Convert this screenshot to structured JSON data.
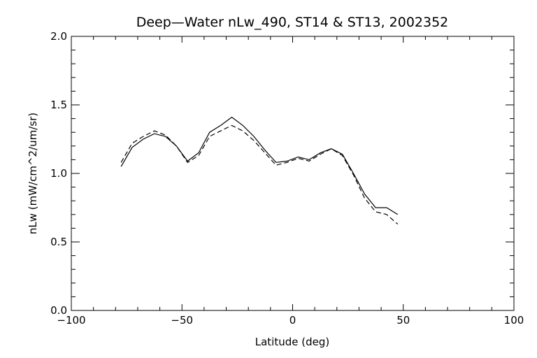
{
  "chart_data": {
    "type": "line",
    "title": "Deep—Water nLw_490, ST14 & ST13, 2002352",
    "xlabel": "Latitude (deg)",
    "ylabel": "nLw (mW/cm^2/um/sr)",
    "xlim": [
      -100,
      100
    ],
    "ylim": [
      0.0,
      2.0
    ],
    "xticks": [
      -100,
      -50,
      0,
      50,
      100
    ],
    "xtick_labels": [
      "−100",
      "−50",
      "0",
      "50",
      "100"
    ],
    "yticks": [
      0.0,
      0.5,
      1.0,
      1.5,
      2.0
    ],
    "ytick_labels": [
      "0.0",
      "0.5",
      "1.0",
      "1.5",
      "2.0"
    ],
    "grid": false,
    "series": [
      {
        "style": "solid",
        "color": "#000000",
        "x": [
          -77.5,
          -72.5,
          -67.5,
          -62.5,
          -57.5,
          -52.5,
          -47.5,
          -42.5,
          -37.5,
          -32.5,
          -27.5,
          -22.5,
          -17.5,
          -12.5,
          -7.5,
          -2.5,
          2.5,
          7.5,
          12.5,
          17.5,
          22.5,
          27.5,
          32.5,
          37.5,
          42.5,
          47.5
        ],
        "y": [
          1.05,
          1.19,
          1.25,
          1.29,
          1.27,
          1.2,
          1.09,
          1.15,
          1.3,
          1.35,
          1.41,
          1.35,
          1.27,
          1.17,
          1.08,
          1.09,
          1.12,
          1.1,
          1.15,
          1.18,
          1.14,
          1.0,
          0.85,
          0.75,
          0.75,
          0.7
        ]
      },
      {
        "style": "dashed",
        "color": "#000000",
        "x": [
          -77.5,
          -72.5,
          -67.5,
          -62.5,
          -57.5,
          -52.5,
          -47.5,
          -42.5,
          -37.5,
          -32.5,
          -27.5,
          -22.5,
          -17.5,
          -12.5,
          -7.5,
          -2.5,
          2.5,
          7.5,
          12.5,
          17.5,
          22.5,
          27.5,
          32.5,
          37.5,
          42.5,
          47.5
        ],
        "y": [
          1.08,
          1.22,
          1.27,
          1.31,
          1.28,
          1.2,
          1.08,
          1.13,
          1.27,
          1.31,
          1.35,
          1.31,
          1.24,
          1.15,
          1.06,
          1.08,
          1.11,
          1.09,
          1.14,
          1.18,
          1.13,
          0.99,
          0.82,
          0.72,
          0.7,
          0.63
        ]
      }
    ]
  }
}
